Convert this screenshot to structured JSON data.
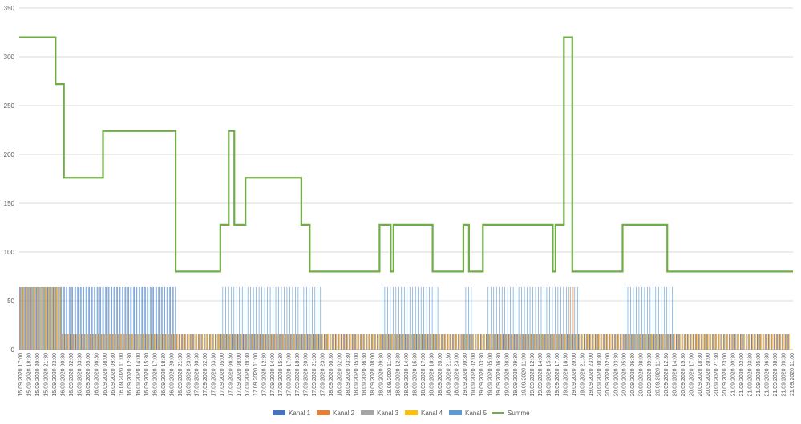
{
  "chart_data": {
    "type": "bar",
    "title": "",
    "xlabel": "",
    "ylabel": "",
    "ylim": [
      0,
      350
    ],
    "yticks": [
      0,
      50,
      100,
      150,
      200,
      250,
      300,
      350
    ],
    "grid": true,
    "legend_position": "bottom",
    "x_start": "15.09.2020 17:00",
    "x_end": "21.09.2020 11:00",
    "x_step_hours": 0.5,
    "x_label_every_hours": 1.5,
    "xtick_labels": [
      "15.09.2020 17:00",
      "15.09.2020 18:30",
      "15.09.2020 20:00",
      "15.09.2020 21:30",
      "15.09.2020 23:00",
      "16.09.2020 00:30",
      "16.09.2020 02:00",
      "16.09.2020 03:30",
      "16.09.2020 05:00",
      "16.09.2020 06:30",
      "16.09.2020 08:00",
      "16.09.2020 09:30",
      "16.09.2020 11:00",
      "16.09.2020 12:30",
      "16.09.2020 14:00",
      "16.09.2020 15:30",
      "16.09.2020 17:00",
      "16.09.2020 18:30",
      "16.09.2020 20:00",
      "16.09.2020 21:30",
      "16.09.2020 23:00",
      "17.09.2020 00:30",
      "17.09.2020 02:00",
      "17.09.2020 03:30",
      "17.09.2020 05:00",
      "17.09.2020 06:30",
      "17.09.2020 08:00",
      "17.09.2020 09:30",
      "17.09.2020 11:00",
      "17.09.2020 12:30",
      "17.09.2020 14:00",
      "17.09.2020 15:30",
      "17.09.2020 17:00",
      "17.09.2020 18:30",
      "17.09.2020 20:00",
      "17.09.2020 21:30",
      "17.09.2020 23:00",
      "18.09.2020 00:30",
      "18.09.2020 02:00",
      "18.09.2020 03:30",
      "18.09.2020 05:00",
      "18.09.2020 06:30",
      "18.09.2020 08:00",
      "18.09.2020 09:30",
      "18.09.2020 11:00",
      "18.09.2020 12:30",
      "18.09.2020 14:00",
      "18.09.2020 15:30",
      "18.09.2020 17:00",
      "18.09.2020 18:30",
      "18.09.2020 20:00",
      "18.09.2020 21:30",
      "18.09.2020 23:00",
      "19.09.2020 00:30",
      "19.09.2020 02:00",
      "19.09.2020 03:30",
      "19.09.2020 05:00",
      "19.09.2020 06:30",
      "19.09.2020 08:00",
      "19.09.2020 09:30",
      "19.09.2020 11:00",
      "19.09.2020 12:30",
      "19.09.2020 14:00",
      "19.09.2020 15:30",
      "19.09.2020 17:00",
      "19.09.2020 18:30",
      "19.09.2020 20:00",
      "19.09.2020 21:30",
      "19.09.2020 23:00",
      "20.09.2020 00:30",
      "20.09.2020 02:00",
      "20.09.2020 03:30",
      "20.09.2020 05:00",
      "20.09.2020 06:30",
      "20.09.2020 08:00",
      "20.09.2020 09:30",
      "20.09.2020 11:00",
      "20.09.2020 12:30",
      "20.09.2020 14:00",
      "20.09.2020 15:30",
      "20.09.2020 17:00",
      "20.09.2020 18:30",
      "20.09.2020 20:00",
      "20.09.2020 21:30",
      "20.09.2020 23:00",
      "21.09.2020 00:30",
      "21.09.2020 02:00",
      "21.09.2020 03:30",
      "21.09.2020 05:00",
      "21.09.2020 06:30",
      "21.09.2020 08:00",
      "21.09.2020 09:30",
      "21.09.2020 11:00"
    ],
    "series": [
      {
        "name": "Kanal 1",
        "type": "bar",
        "color": "#4472C4",
        "segments": [
          {
            "from": "15.09.2020 17:00",
            "to": "16.09.2020 21:00",
            "value": 64
          },
          {
            "from": "16.09.2020 21:00",
            "to": "21.09.2020 11:00",
            "value": 16
          }
        ]
      },
      {
        "name": "Kanal 2",
        "type": "bar",
        "color": "#ED7D31",
        "segments": [
          {
            "from": "15.09.2020 17:00",
            "to": "16.09.2020 00:30",
            "value": 64
          },
          {
            "from": "16.09.2020 00:30",
            "to": "19.09.2020 19:30",
            "value": 16
          },
          {
            "from": "19.09.2020 19:30",
            "to": "19.09.2020 20:30",
            "value": 64
          },
          {
            "from": "19.09.2020 20:30",
            "to": "21.09.2020 11:00",
            "value": 16
          }
        ]
      },
      {
        "name": "Kanal 3",
        "type": "bar",
        "color": "#A5A5A5",
        "segments": [
          {
            "from": "15.09.2020 17:00",
            "to": "16.09.2020 00:30",
            "value": 64
          },
          {
            "from": "16.09.2020 00:30",
            "to": "21.09.2020 11:00",
            "value": 16
          }
        ]
      },
      {
        "name": "Kanal 4",
        "type": "bar",
        "color": "#FFC000",
        "segments": [
          {
            "from": "15.09.2020 17:00",
            "to": "16.09.2020 00:30",
            "value": 64
          },
          {
            "from": "16.09.2020 00:30",
            "to": "21.09.2020 11:00",
            "value": 16
          }
        ]
      },
      {
        "name": "Kanal 5",
        "type": "bar",
        "color": "#5B9BD5",
        "segments": [
          {
            "from": "15.09.2020 17:00",
            "to": "16.09.2020 21:00",
            "value": 64
          },
          {
            "from": "17.09.2020 05:00",
            "to": "17.09.2020 23:00",
            "value": 64
          },
          {
            "from": "18.09.2020 09:30",
            "to": "18.09.2020 20:00",
            "value": 64
          },
          {
            "from": "19.09.2020 00:30",
            "to": "19.09.2020 02:00",
            "value": 64
          },
          {
            "from": "19.09.2020 04:30",
            "to": "19.09.2020 21:00",
            "value": 64
          },
          {
            "from": "20.09.2020 05:00",
            "to": "20.09.2020 14:00",
            "value": 64
          }
        ]
      },
      {
        "name": "Summe",
        "type": "line",
        "color": "#70AD47",
        "points": [
          [
            "15.09.2020 17:00",
            320
          ],
          [
            "15.09.2020 23:30",
            272
          ],
          [
            "16.09.2020 01:00",
            176
          ],
          [
            "16.09.2020 08:00",
            224
          ],
          [
            "16.09.2020 21:00",
            80
          ],
          [
            "17.09.2020 05:00",
            128
          ],
          [
            "17.09.2020 06:30",
            224
          ],
          [
            "17.09.2020 07:30",
            128
          ],
          [
            "17.09.2020 09:30",
            176
          ],
          [
            "17.09.2020 19:30",
            128
          ],
          [
            "17.09.2020 21:00",
            80
          ],
          [
            "18.09.2020 09:30",
            128
          ],
          [
            "18.09.2020 11:30",
            80
          ],
          [
            "18.09.2020 12:00",
            128
          ],
          [
            "18.09.2020 19:00",
            80
          ],
          [
            "19.09.2020 00:30",
            128
          ],
          [
            "19.09.2020 01:30",
            80
          ],
          [
            "19.09.2020 04:00",
            128
          ],
          [
            "19.09.2020 16:30",
            80
          ],
          [
            "19.09.2020 17:00",
            128
          ],
          [
            "19.09.2020 18:30",
            320
          ],
          [
            "19.09.2020 20:00",
            80
          ],
          [
            "20.09.2020 05:00",
            128
          ],
          [
            "20.09.2020 13:00",
            80
          ],
          [
            "21.09.2020 11:00",
            80
          ]
        ]
      }
    ]
  }
}
